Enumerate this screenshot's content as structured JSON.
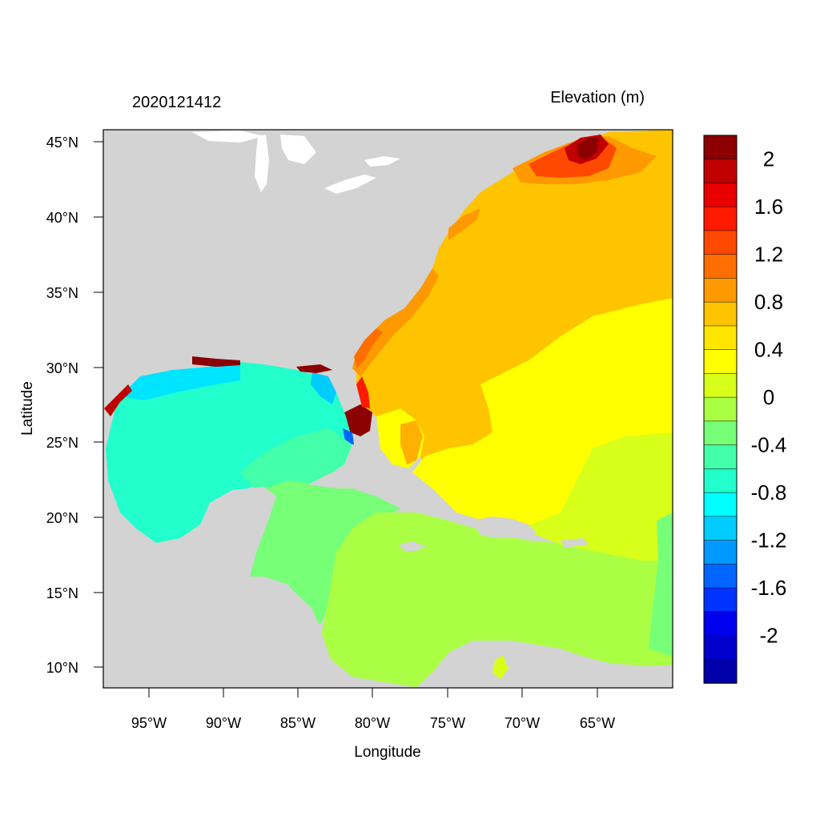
{
  "map": {
    "date_label": "2020121412",
    "variable_label": "Elevation (m)",
    "x_axis_label": "Longitude",
    "y_axis_label": "Latitude",
    "lon_ticks": [
      "95°W",
      "90°W",
      "85°W",
      "80°W",
      "75°W",
      "70°W",
      "65°W"
    ],
    "lat_ticks": [
      "45°N",
      "40°N",
      "35°N",
      "30°N",
      "25°N",
      "20°N",
      "15°N",
      "10°N"
    ],
    "land_color": "#d3d3d3",
    "colorbar": {
      "labels": [
        "2",
        "1.6",
        "1.2",
        "0.8",
        "0.4",
        "0",
        "-0.4",
        "-0.8",
        "-1.2",
        "-1.6",
        "-2"
      ],
      "colors": [
        "#8b0000",
        "#c00000",
        "#e80000",
        "#ff1a00",
        "#ff4800",
        "#ff6e00",
        "#ff9900",
        "#ffc400",
        "#ffe600",
        "#ffff00",
        "#d8ff1a",
        "#aaff44",
        "#77ff77",
        "#44ffaa",
        "#22ffcc",
        "#00ffff",
        "#00ccff",
        "#0099ff",
        "#0066ff",
        "#0033ff",
        "#0000ee",
        "#0000cc",
        "#0000aa"
      ]
    }
  }
}
